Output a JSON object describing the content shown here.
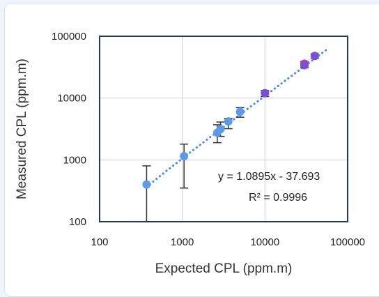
{
  "chart_data": {
    "type": "scatter",
    "xlabel": "Expected CPL (ppm.m)",
    "ylabel": "Measured CPL (ppm.m)",
    "x_scale": "log",
    "y_scale": "log",
    "xlim": [
      100,
      100000
    ],
    "ylim": [
      100,
      100000
    ],
    "x_ticks": [
      "100",
      "1000",
      "10000",
      "100000"
    ],
    "y_ticks": [
      "100",
      "1000",
      "10000",
      "100000"
    ],
    "grid": true,
    "points": [
      {
        "x": 370,
        "y": 400,
        "err_low": 100,
        "err_high": 800,
        "color": "#5b9bea"
      },
      {
        "x": 1050,
        "y": 1150,
        "err_low": 350,
        "err_high": 1800,
        "color": "#5b9bea"
      },
      {
        "x": 2650,
        "y": 2750,
        "err_low": 1900,
        "err_high": 3700,
        "color": "#5b9bea"
      },
      {
        "x": 2900,
        "y": 3150,
        "err_low": 2400,
        "err_high": 4100,
        "color": "#5b9bea"
      },
      {
        "x": 3600,
        "y": 4200,
        "err_low": 3200,
        "err_high": 4700,
        "color": "#5b9bea"
      },
      {
        "x": 5000,
        "y": 6000,
        "err_low": 4900,
        "err_high": 7000,
        "color": "#5b9bea"
      },
      {
        "x": 10000,
        "y": 12000,
        "err_low": 10600,
        "err_high": 13200,
        "color": "#7a4fd6"
      },
      {
        "x": 30000,
        "y": 36000,
        "err_low": 33000,
        "err_high": 39000,
        "color": "#c43aa8"
      },
      {
        "x": 30000,
        "y": 34000,
        "err_low": 31000,
        "err_high": 37000,
        "color": "#7a4fd6"
      },
      {
        "x": 40000,
        "y": 48000,
        "err_low": 44000,
        "err_high": 52000,
        "color": "#7a4fd6"
      }
    ],
    "trendline": {
      "type": "linear",
      "x_range": [
        370,
        55000
      ],
      "slope": 1.0895,
      "intercept": -37.693,
      "color": "#4a90e2",
      "style": "dotted"
    },
    "annotations": {
      "equation": "y = 1.0895x - 37.693",
      "r_squared": "R² = 0.9996"
    }
  }
}
